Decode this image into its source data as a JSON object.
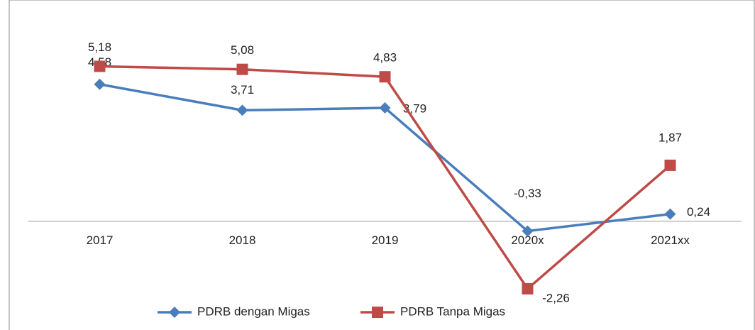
{
  "chart_data": {
    "type": "line",
    "categories": [
      "2017",
      "2018",
      "2019",
      "2020x",
      "2021xx"
    ],
    "series": [
      {
        "name": "PDRB dengan Migas",
        "color": "#4a7ebb",
        "marker": "diamond",
        "values": [
          4.58,
          3.71,
          3.79,
          -0.33,
          0.24
        ],
        "value_labels": [
          "4,58",
          "3,71",
          "3,79",
          "-0,33",
          "0,24"
        ]
      },
      {
        "name": "PDRB Tanpa Migas",
        "color": "#be4b48",
        "marker": "square",
        "values": [
          5.18,
          5.08,
          4.83,
          -2.26,
          1.87
        ],
        "value_labels": [
          "5,18",
          "5,08",
          "4,83",
          "-2,26",
          "1,87"
        ]
      }
    ],
    "ylim": [
      -2.5,
      5.5
    ],
    "grid": false,
    "legend": "bottom"
  }
}
